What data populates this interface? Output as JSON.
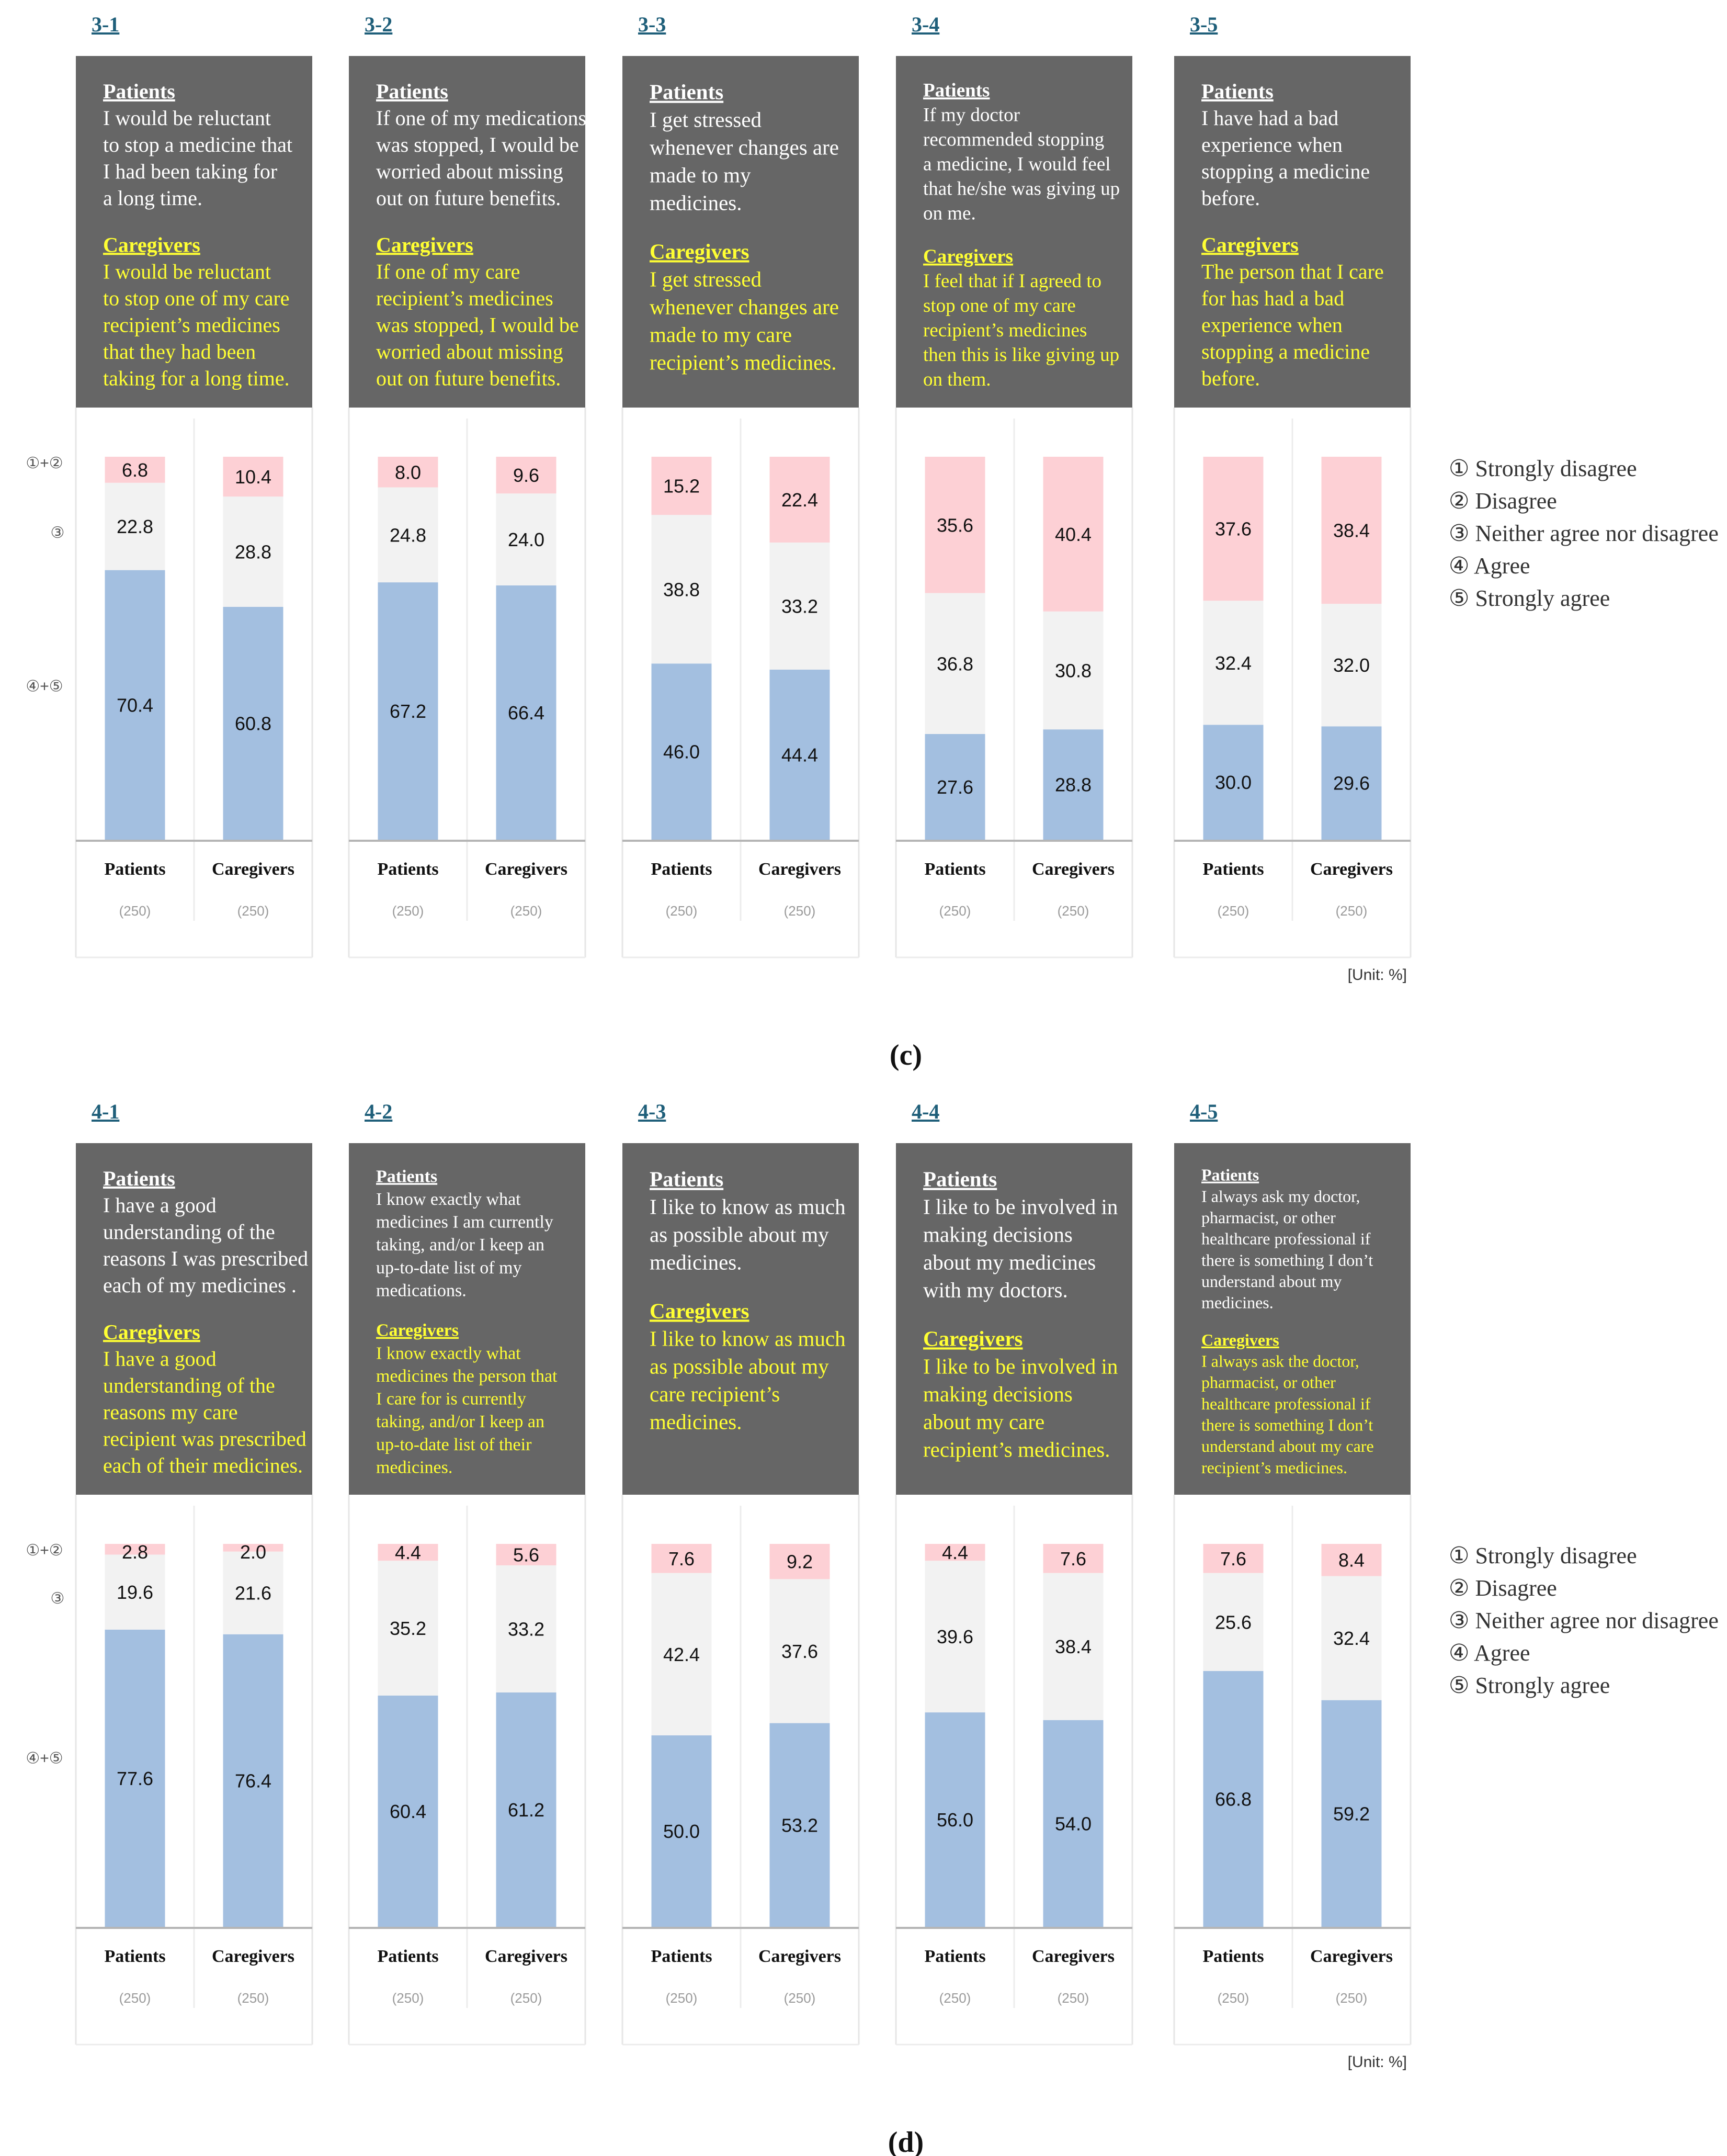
{
  "colors": {
    "disagree": "#fdd0d5",
    "neutral": "#f2f2f2",
    "agree": "#a3bfe0",
    "question_bg": "#666666",
    "patients_text": "#ffffff",
    "caregivers_text": "#ffff33",
    "panel_id": "#1f5f7a"
  },
  "legend": [
    "① Strongly disagree",
    "② Disagree",
    "③ Neither agree nor disagree",
    "④ Agree",
    "⑤ Strongly agree"
  ],
  "category_labels": {
    "disagree": "①+②",
    "neutral": "③",
    "agree": "④+⑤"
  },
  "column_labels": [
    "Patients",
    "Caregivers"
  ],
  "n_label": "(250)",
  "unit": "[Unit: %]",
  "chart_data": [
    {
      "type": "bar",
      "stacked": true,
      "subfigure": "(c)",
      "panels": [
        {
          "id": "3-1",
          "patients_heading": "Patients",
          "patients_text": [
            "I would be reluctant",
            "to stop a medicine that",
            "I had been taking for",
            "a long time."
          ],
          "caregivers_heading": "Caregivers",
          "caregivers_text": [
            "I would be reluctant",
            "to stop one of my care",
            "recipient’s medicines",
            "that they had been",
            "taking for a long time."
          ],
          "patients": {
            "disagree": 6.8,
            "neutral": 22.8,
            "agree": 70.4
          },
          "caregivers": {
            "disagree": 10.4,
            "neutral": 28.8,
            "agree": 60.8
          }
        },
        {
          "id": "3-2",
          "patients_heading": "Patients",
          "patients_text": [
            "If one of my medications",
            "was stopped, I would be",
            "worried about missing",
            "out on future benefits."
          ],
          "caregivers_heading": "Caregivers",
          "caregivers_text": [
            "If one of my care",
            "recipient’s medicines",
            "was stopped, I would be",
            "worried about missing",
            "out on future benefits."
          ],
          "patients": {
            "disagree": 8.0,
            "neutral": 24.8,
            "agree": 67.2
          },
          "caregivers": {
            "disagree": 9.6,
            "neutral": 24.0,
            "agree": 66.4
          }
        },
        {
          "id": "3-3",
          "patients_heading": "Patients",
          "patients_text": [
            "I get stressed",
            "whenever changes are",
            "made to my",
            "medicines."
          ],
          "caregivers_heading": "Caregivers",
          "caregivers_text": [
            "I get stressed",
            "whenever changes are",
            "made to my care",
            "recipient’s medicines."
          ],
          "patients": {
            "disagree": 15.2,
            "neutral": 38.8,
            "agree": 46.0
          },
          "caregivers": {
            "disagree": 22.4,
            "neutral": 33.2,
            "agree": 44.4
          }
        },
        {
          "id": "3-4",
          "patients_heading": "Patients",
          "patients_text": [
            "If my doctor",
            "recommended stopping",
            "a medicine, I would feel",
            "that he/she was giving up",
            "on me."
          ],
          "caregivers_heading": "Caregivers",
          "caregivers_text": [
            "I feel that if I agreed to",
            "stop one of my care",
            "recipient’s medicines",
            "then this is like giving up",
            "on them."
          ],
          "patients": {
            "disagree": 35.6,
            "neutral": 36.8,
            "agree": 27.6
          },
          "caregivers": {
            "disagree": 40.4,
            "neutral": 30.8,
            "agree": 28.8
          }
        },
        {
          "id": "3-5",
          "patients_heading": "Patients",
          "patients_text": [
            "I have had a bad",
            "experience when",
            "stopping a medicine",
            "before."
          ],
          "caregivers_heading": "Caregivers",
          "caregivers_text": [
            "The person that I care",
            "for has had a bad",
            "experience when",
            "stopping a medicine",
            "before."
          ],
          "patients": {
            "disagree": 37.6,
            "neutral": 32.4,
            "agree": 30.0
          },
          "caregivers": {
            "disagree": 38.4,
            "neutral": 32.0,
            "agree": 29.6
          }
        }
      ]
    },
    {
      "type": "bar",
      "stacked": true,
      "subfigure": "(d)",
      "panels": [
        {
          "id": "4-1",
          "patients_heading": "Patients",
          "patients_text": [
            "I have a good",
            "understanding of the",
            "reasons I was prescribed",
            "each of my medicines ."
          ],
          "caregivers_heading": "Caregivers",
          "caregivers_text": [
            "I have a good",
            "understanding of the",
            "reasons my care",
            "recipient was prescribed",
            "each of their medicines."
          ],
          "patients": {
            "disagree": 2.8,
            "neutral": 19.6,
            "agree": 77.6
          },
          "caregivers": {
            "disagree": 2.0,
            "neutral": 21.6,
            "agree": 76.4
          }
        },
        {
          "id": "4-2",
          "patients_heading": "Patients",
          "patients_text": [
            "I know exactly what",
            "medicines I am currently",
            "taking, and/or I keep an",
            "up-to-date list of my",
            "medications."
          ],
          "caregivers_heading": "Caregivers",
          "caregivers_text": [
            "I know exactly what",
            "medicines the person that",
            "I care for is currently",
            "taking, and/or I keep an",
            "up-to-date list of their",
            "medicines."
          ],
          "patients": {
            "disagree": 4.4,
            "neutral": 35.2,
            "agree": 60.4
          },
          "caregivers": {
            "disagree": 5.6,
            "neutral": 33.2,
            "agree": 61.2
          }
        },
        {
          "id": "4-3",
          "patients_heading": "Patients",
          "patients_text": [
            "I like to know as much",
            "as possible about my",
            "medicines."
          ],
          "caregivers_heading": "Caregivers",
          "caregivers_text": [
            "I like to know as much",
            "as possible about my",
            "care recipient’s",
            "medicines."
          ],
          "patients": {
            "disagree": 7.6,
            "neutral": 42.4,
            "agree": 50.0
          },
          "caregivers": {
            "disagree": 9.2,
            "neutral": 37.6,
            "agree": 53.2
          }
        },
        {
          "id": "4-4",
          "patients_heading": "Patients",
          "patients_text": [
            "I like to be involved in",
            "making decisions",
            "about my medicines",
            "with my doctors."
          ],
          "caregivers_heading": "Caregivers",
          "caregivers_text": [
            "I like to be involved in",
            "making decisions",
            "about my care",
            "recipient’s medicines."
          ],
          "patients": {
            "disagree": 4.4,
            "neutral": 39.6,
            "agree": 56.0
          },
          "caregivers": {
            "disagree": 7.6,
            "neutral": 38.4,
            "agree": 54.0
          }
        },
        {
          "id": "4-5",
          "patients_heading": "Patients",
          "patients_text": [
            "I always ask my doctor,",
            "pharmacist, or other",
            "healthcare professional if",
            "there is something I don’t",
            "understand about my",
            "medicines."
          ],
          "caregivers_heading": "Caregivers",
          "caregivers_text": [
            "I always ask the doctor,",
            "pharmacist, or other",
            "healthcare professional if",
            "there is something I don’t",
            "understand about my care",
            "recipient’s medicines."
          ],
          "patients": {
            "disagree": 7.6,
            "neutral": 25.6,
            "agree": 66.8
          },
          "caregivers": {
            "disagree": 8.4,
            "neutral": 32.4,
            "agree": 59.2
          }
        }
      ]
    }
  ]
}
